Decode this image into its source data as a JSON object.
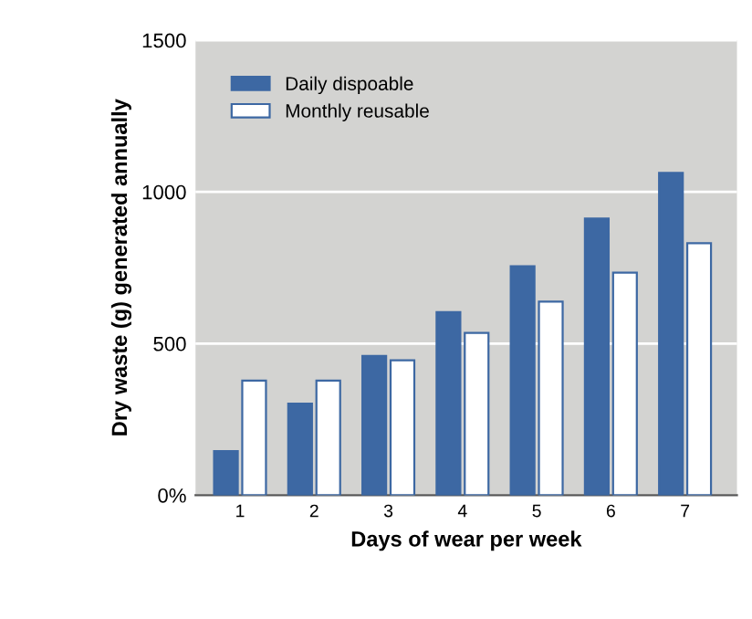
{
  "chart_data": {
    "type": "bar",
    "xlabel": "Days of wear per week",
    "ylabel": "Dry waste (g) generated annually",
    "categories": [
      "1",
      "2",
      "3",
      "4",
      "5",
      "6",
      "7"
    ],
    "series": [
      {
        "name": "Daily dispoable",
        "color": "#3d68a3",
        "values": [
          145,
          302,
          459,
          604,
          755,
          912,
          1063
        ]
      },
      {
        "name": "Monthly reusable",
        "color": "#ffffff",
        "values": [
          378,
          378,
          445,
          535,
          638,
          734,
          831
        ]
      }
    ],
    "ylim": [
      0,
      1500
    ],
    "yticks": [
      {
        "value": 0,
        "label": "0%"
      },
      500,
      1000,
      1500
    ],
    "grid": "y",
    "legend": "top left"
  }
}
